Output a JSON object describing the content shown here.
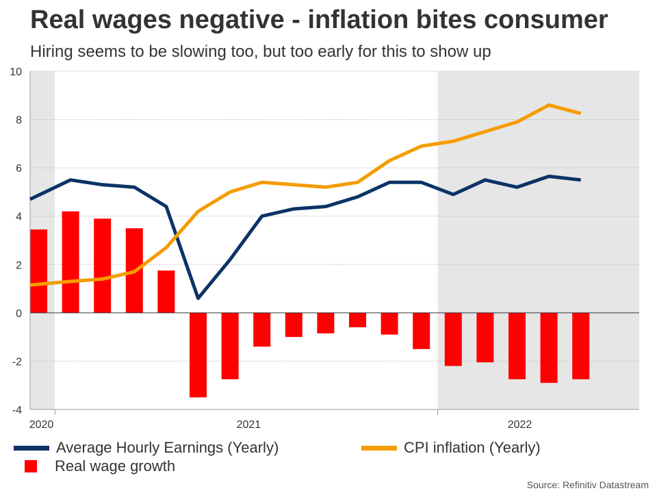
{
  "header": {
    "title": "Real wages negative - inflation bites consumer",
    "subtitle": "Hiring seems to be slowing too, but too early for this to show up"
  },
  "source": "Source: Refinitiv Datastream",
  "colors": {
    "earnings": "#0b3366",
    "cpi": "#f59c00",
    "real_wage": "#ff0000",
    "shade": "#e6e6e6",
    "grid": "#c0c0c0",
    "axis": "#333333"
  },
  "chart_data": {
    "type": "bar",
    "title": "Real wages negative - inflation bites consumer",
    "subtitle": "Hiring seems to be slowing too, but too early for this to show up",
    "xlabel": "",
    "ylabel": "",
    "ylim": [
      -4,
      10
    ],
    "yticks": [
      -4,
      -2,
      0,
      2,
      4,
      6,
      8,
      10
    ],
    "grid": true,
    "legend_position": "bottom",
    "x_tick_labels": [
      {
        "label": "2020",
        "period": 1
      },
      {
        "label": "2021",
        "period": 7.5
      },
      {
        "label": "2022",
        "period": 16
      }
    ],
    "year_boundaries": [
      2,
      14
    ],
    "shaded_ranges": [
      [
        1,
        2
      ],
      [
        14,
        19.6
      ]
    ],
    "periods": [
      1,
      2,
      3,
      4,
      5,
      6,
      7,
      8,
      9,
      10,
      11,
      12,
      13,
      14,
      15,
      16,
      17,
      18
    ],
    "series": [
      {
        "name": "Average Hourly Earnings (Yearly)",
        "kind": "line",
        "color": "#0b3366",
        "values": [
          4.7,
          5.5,
          5.3,
          5.2,
          4.4,
          0.6,
          2.2,
          4.0,
          4.3,
          4.4,
          4.8,
          5.4,
          5.4,
          4.9,
          5.5,
          5.2,
          5.65,
          5.5
        ]
      },
      {
        "name": "CPI inflation (Yearly)",
        "kind": "line",
        "color": "#f59c00",
        "values": [
          1.15,
          1.3,
          1.4,
          1.7,
          2.7,
          4.2,
          5.0,
          5.4,
          5.3,
          5.2,
          5.4,
          6.3,
          6.9,
          7.1,
          7.5,
          7.9,
          8.6,
          8.25
        ]
      },
      {
        "name": "Real wage growth",
        "kind": "bar",
        "color": "#ff0000",
        "values": [
          3.45,
          4.2,
          3.9,
          3.5,
          1.75,
          -3.5,
          -2.75,
          -1.4,
          -1.0,
          -0.85,
          -0.6,
          -0.9,
          -1.5,
          -2.2,
          -2.05,
          -2.75,
          -2.9,
          -2.75
        ]
      }
    ]
  }
}
